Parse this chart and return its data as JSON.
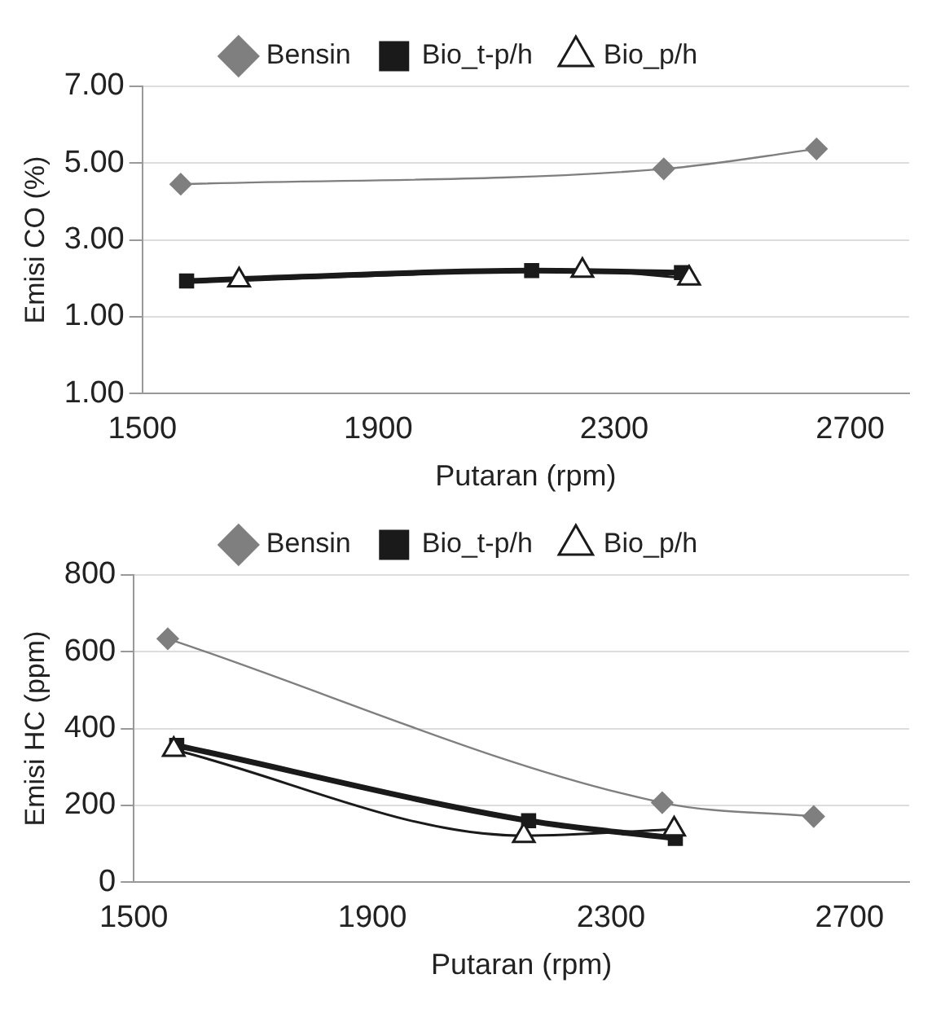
{
  "chart_data": [
    {
      "type": "line",
      "xlabel": "Putaran (rpm)",
      "ylabel": "Emisi CO (%)",
      "xlim": [
        1500,
        2800
      ],
      "xticks": [
        1500,
        1900,
        2300,
        2700
      ],
      "ylim": [
        -1,
        7
      ],
      "yticks": [
        {
          "value": -1,
          "label": "1.00"
        },
        {
          "value": 1,
          "label": "1.00"
        },
        {
          "value": 3,
          "label": "3.00"
        },
        {
          "value": 5,
          "label": "5.00"
        },
        {
          "value": 7,
          "label": "7.00"
        }
      ],
      "grid": "y",
      "legend": "top",
      "series": [
        {
          "name": "Bensin",
          "color": "#7f7f7f",
          "marker": "diamond",
          "x": [
            1565,
            2384,
            2643
          ],
          "values": [
            4.45,
            4.85,
            5.37
          ]
        },
        {
          "name": "Bio_t-p/h",
          "color": "#1a1a1a",
          "marker": "square",
          "x": [
            1575,
            2160,
            2414
          ],
          "values": [
            1.93,
            2.2,
            2.15
          ]
        },
        {
          "name": "Bio_p/h",
          "color": "#1a1a1a",
          "marker": "triangle",
          "x": [
            1664,
            2246,
            2427
          ],
          "values": [
            1.95,
            2.2,
            2.0
          ]
        }
      ]
    },
    {
      "type": "line",
      "xlabel": "Putaran (rpm)",
      "ylabel": "Emisi HC (ppm)",
      "xlim": [
        1500,
        2800
      ],
      "xticks": [
        1500,
        1900,
        2300,
        2700
      ],
      "ylim": [
        0,
        800
      ],
      "yticks": [
        0,
        200,
        400,
        600,
        800
      ],
      "grid": "y",
      "legend": "top",
      "series": [
        {
          "name": "Bensin",
          "color": "#7f7f7f",
          "marker": "diamond",
          "x": [
            1557,
            2386,
            2640
          ],
          "values": [
            634,
            207,
            171
          ]
        },
        {
          "name": "Bio_t-p/h",
          "color": "#1a1a1a",
          "marker": "square",
          "x": [
            1572,
            2162,
            2408
          ],
          "values": [
            356,
            160,
            114
          ]
        },
        {
          "name": "Bio_p/h",
          "color": "#1a1a1a",
          "marker": "triangle",
          "x": [
            1567,
            2154,
            2406
          ],
          "values": [
            345,
            121,
            138
          ]
        }
      ]
    }
  ]
}
